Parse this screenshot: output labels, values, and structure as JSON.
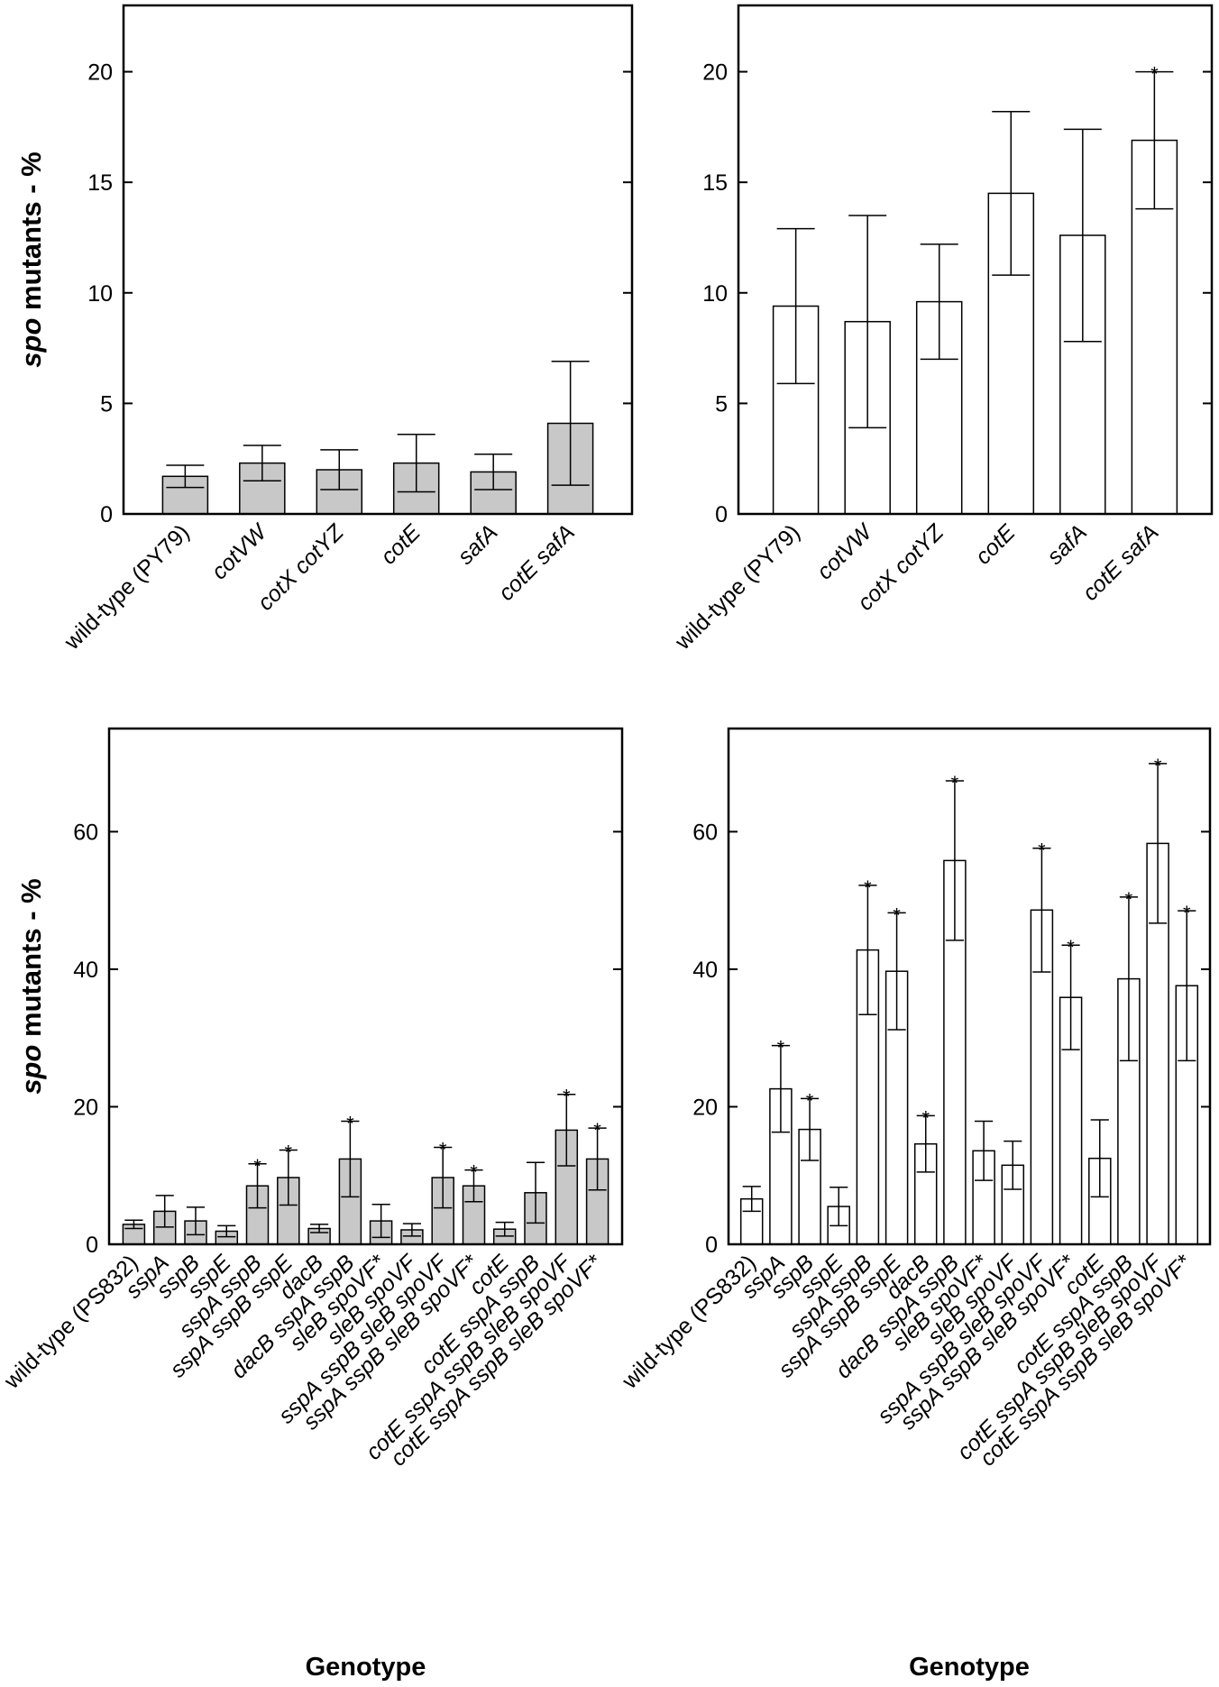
{
  "colors": {
    "filled": "#c8c8c8",
    "open": "#ffffff",
    "ink": "#000000"
  },
  "y_label_prefix_italic": "spo",
  "y_label_rest": " mutants - %",
  "chart_data": [
    {
      "id": "top-left",
      "type": "bar",
      "fill": "filled",
      "ylim": [
        0,
        23
      ],
      "yticks": [
        0,
        5,
        10,
        15,
        20
      ],
      "show_ylabel": true,
      "xlabel": "",
      "categories": [
        [
          {
            "t": "wild-type (PY79)",
            "i": false
          }
        ],
        [
          {
            "t": "cotVW",
            "i": true
          }
        ],
        [
          {
            "t": "cotX cotYZ",
            "i": true
          }
        ],
        [
          {
            "t": "cotE",
            "i": true
          }
        ],
        [
          {
            "t": "safA",
            "i": true
          }
        ],
        [
          {
            "t": "cotE safA",
            "i": true
          }
        ]
      ],
      "values": [
        1.7,
        2.3,
        2.0,
        2.3,
        1.9,
        4.1
      ],
      "errors": [
        0.5,
        0.8,
        0.9,
        1.3,
        0.8,
        2.8
      ],
      "significant": [
        false,
        false,
        false,
        false,
        false,
        false
      ]
    },
    {
      "id": "top-right",
      "type": "bar",
      "fill": "open",
      "ylim": [
        0,
        23
      ],
      "yticks": [
        0,
        5,
        10,
        15,
        20
      ],
      "show_ylabel": false,
      "xlabel": "",
      "categories": [
        [
          {
            "t": "wild-type (PY79)",
            "i": false
          }
        ],
        [
          {
            "t": "cotVW",
            "i": true
          }
        ],
        [
          {
            "t": "cotX cotYZ",
            "i": true
          }
        ],
        [
          {
            "t": "cotE",
            "i": true
          }
        ],
        [
          {
            "t": "safA",
            "i": true
          }
        ],
        [
          {
            "t": "cotE safA",
            "i": true
          }
        ]
      ],
      "values": [
        9.4,
        8.7,
        9.6,
        14.5,
        12.6,
        16.9
      ],
      "errors": [
        3.5,
        4.8,
        2.6,
        3.7,
        4.8,
        3.1
      ],
      "significant": [
        false,
        false,
        false,
        false,
        false,
        true
      ]
    },
    {
      "id": "bottom-left",
      "type": "bar",
      "fill": "filled",
      "ylim": [
        0,
        75
      ],
      "yticks": [
        0,
        20,
        40,
        60
      ],
      "show_ylabel": true,
      "xlabel": "Genotype",
      "categories": [
        [
          {
            "t": "wild-type (PS832)",
            "i": false
          }
        ],
        [
          {
            "t": "sspA",
            "i": true
          }
        ],
        [
          {
            "t": "sspB",
            "i": true
          }
        ],
        [
          {
            "t": "sspE",
            "i": true
          }
        ],
        [
          {
            "t": "sspA sspB",
            "i": true
          }
        ],
        [
          {
            "t": "sspA sspB sspE",
            "i": true
          }
        ],
        [
          {
            "t": "dacB",
            "i": true
          }
        ],
        [
          {
            "t": "dacB sspA sspB",
            "i": true
          }
        ],
        [
          {
            "t": "sleB spoVF*",
            "i": true
          }
        ],
        [
          {
            "t": "sleB spoVF",
            "i": true
          }
        ],
        [
          {
            "t": "sspA sspB sleB spoVF",
            "i": true
          }
        ],
        [
          {
            "t": "sspA sspB sleB spoVF*",
            "i": true
          }
        ],
        [
          {
            "t": "cotE",
            "i": true
          }
        ],
        [
          {
            "t": "cotE sspA sspB",
            "i": true
          }
        ],
        [
          {
            "t": "cotE sspA sspB sleB spoVF",
            "i": true
          }
        ],
        [
          {
            "t": "cotE sspA sspB sleB spoVF*",
            "i": true
          }
        ]
      ],
      "values": [
        2.9,
        4.8,
        3.4,
        1.9,
        8.5,
        9.7,
        2.3,
        12.4,
        3.4,
        2.1,
        9.7,
        8.5,
        2.2,
        7.5,
        16.6,
        12.4
      ],
      "errors": [
        0.6,
        2.3,
        2.0,
        0.8,
        3.2,
        4.0,
        0.6,
        5.5,
        2.4,
        0.9,
        4.4,
        2.3,
        1.0,
        4.4,
        5.2,
        4.5
      ],
      "significant": [
        false,
        false,
        false,
        false,
        true,
        true,
        false,
        true,
        false,
        false,
        true,
        true,
        false,
        false,
        true,
        true
      ]
    },
    {
      "id": "bottom-right",
      "type": "bar",
      "fill": "open",
      "ylim": [
        0,
        75
      ],
      "yticks": [
        0,
        20,
        40,
        60
      ],
      "show_ylabel": false,
      "xlabel": "Genotype",
      "categories": [
        [
          {
            "t": "wild-type (PS832)",
            "i": false
          }
        ],
        [
          {
            "t": "sspA",
            "i": true
          }
        ],
        [
          {
            "t": "sspB",
            "i": true
          }
        ],
        [
          {
            "t": "sspE",
            "i": true
          }
        ],
        [
          {
            "t": "sspA sspB",
            "i": true
          }
        ],
        [
          {
            "t": "sspA sspB sspE",
            "i": true
          }
        ],
        [
          {
            "t": "dacB",
            "i": true
          }
        ],
        [
          {
            "t": "dacB sspA sspB",
            "i": true
          }
        ],
        [
          {
            "t": "sleB spoVF*",
            "i": true
          }
        ],
        [
          {
            "t": "sleB spoVF",
            "i": true
          }
        ],
        [
          {
            "t": "sspA sspB sleB spoVF",
            "i": true
          }
        ],
        [
          {
            "t": "sspA sspB sleB spoVF*",
            "i": true
          }
        ],
        [
          {
            "t": "cotE",
            "i": true
          }
        ],
        [
          {
            "t": "cotE sspA sspB",
            "i": true
          }
        ],
        [
          {
            "t": "cotE sspA sspB sleB spoVF",
            "i": true
          }
        ],
        [
          {
            "t": "cotE sspA sspB sleB spoVF*",
            "i": true
          }
        ]
      ],
      "values": [
        6.6,
        22.6,
        16.7,
        5.5,
        42.8,
        39.7,
        14.6,
        55.8,
        13.6,
        11.5,
        48.6,
        35.9,
        12.5,
        38.6,
        58.3,
        37.6
      ],
      "errors": [
        1.8,
        6.3,
        4.5,
        2.8,
        9.4,
        8.5,
        4.1,
        11.6,
        4.3,
        3.5,
        9.0,
        7.6,
        5.6,
        11.9,
        11.6,
        10.9
      ],
      "significant": [
        false,
        true,
        true,
        false,
        true,
        true,
        true,
        true,
        false,
        false,
        true,
        true,
        false,
        true,
        true,
        true
      ]
    }
  ]
}
